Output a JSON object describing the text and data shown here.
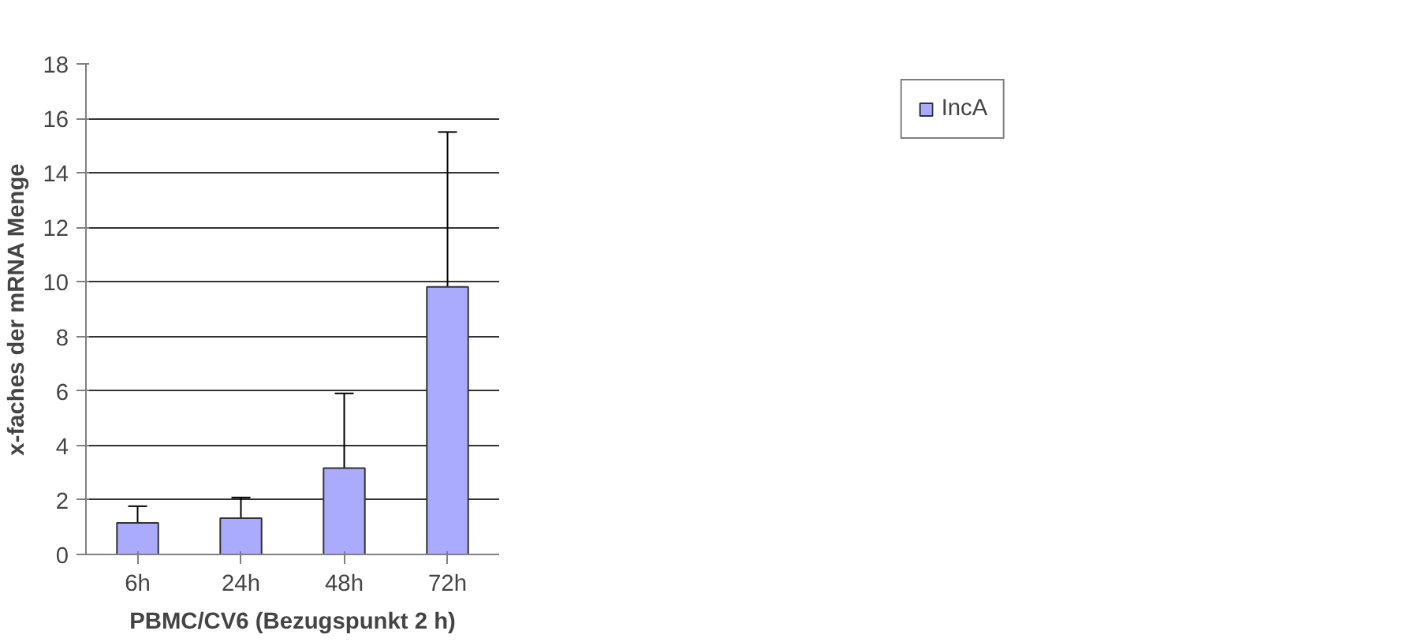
{
  "chart_data": {
    "type": "bar",
    "xlabel": "PBMC/CV6 (Bezugspunkt 2 h)",
    "ylabel": "x-faches der mRNA Menge",
    "categories": [
      "6h",
      "24h",
      "48h",
      "72h"
    ],
    "series": [
      {
        "name": "IncA",
        "color": "#aaaaff",
        "values": [
          1.16,
          1.33,
          3.17,
          9.82
        ],
        "errors": [
          [
            1.16,
            1.77
          ],
          [
            1.33,
            2.09
          ],
          [
            3.17,
            5.91
          ],
          [
            9.82,
            15.5
          ]
        ]
      }
    ],
    "ylim": [
      0,
      18
    ],
    "yticks": [
      0,
      2,
      4,
      6,
      8,
      10,
      12,
      14,
      16,
      18
    ],
    "grid": "y",
    "legend": "right"
  }
}
